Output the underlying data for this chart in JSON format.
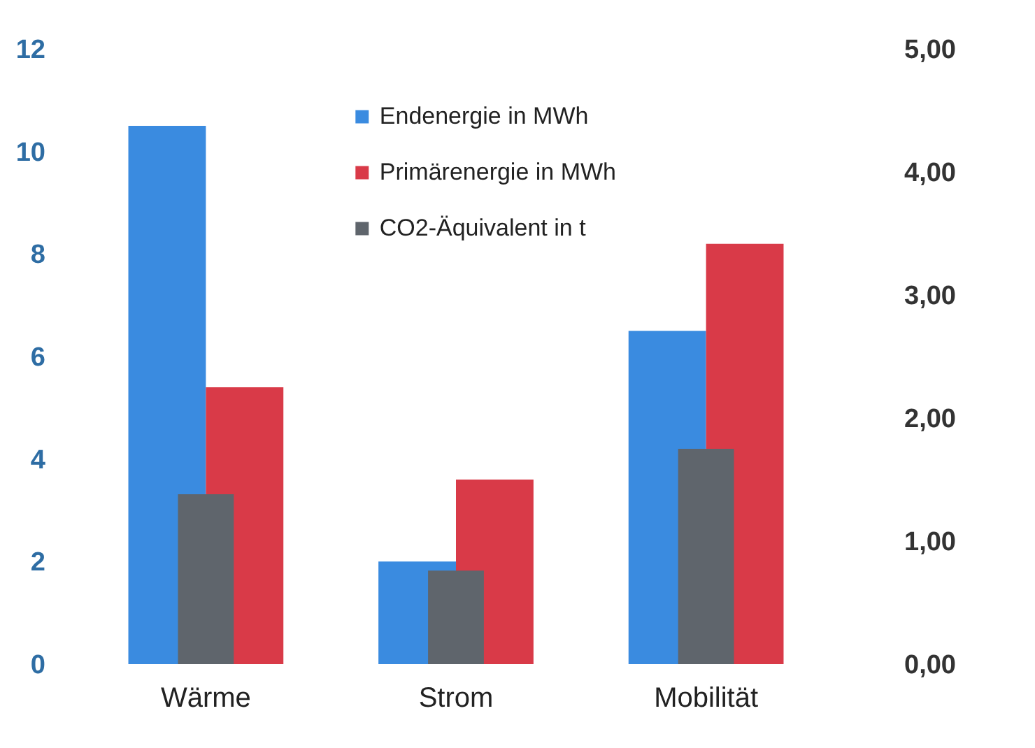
{
  "chart_data": {
    "type": "bar",
    "categories": [
      "Wärme",
      "Strom",
      "Mobilität"
    ],
    "series": [
      {
        "name": "Endenergie in MWh",
        "color": "#3a8be0",
        "values": [
          10.5,
          2.0,
          6.5
        ]
      },
      {
        "name": "Primärenergie in MWh",
        "color": "#d93a48",
        "values": [
          5.4,
          3.6,
          8.2
        ]
      },
      {
        "name": "CO2-Äquivalent in t",
        "color": "#5f656c",
        "axis": "y2",
        "values": [
          1.38,
          0.76,
          1.75
        ]
      }
    ],
    "ylim": [
      0,
      12
    ],
    "yticks": [
      0,
      2,
      4,
      6,
      8,
      10,
      12
    ],
    "y2lim": [
      0,
      5
    ],
    "y2ticks": [
      {
        "value": 0,
        "label": "0,00"
      },
      {
        "value": 1,
        "label": "1,00"
      },
      {
        "value": 2,
        "label": "2,00"
      },
      {
        "value": 3,
        "label": "3,00"
      },
      {
        "value": 4,
        "label": "4,00"
      },
      {
        "value": 5,
        "label": "5,00"
      }
    ],
    "legend": "top"
  }
}
